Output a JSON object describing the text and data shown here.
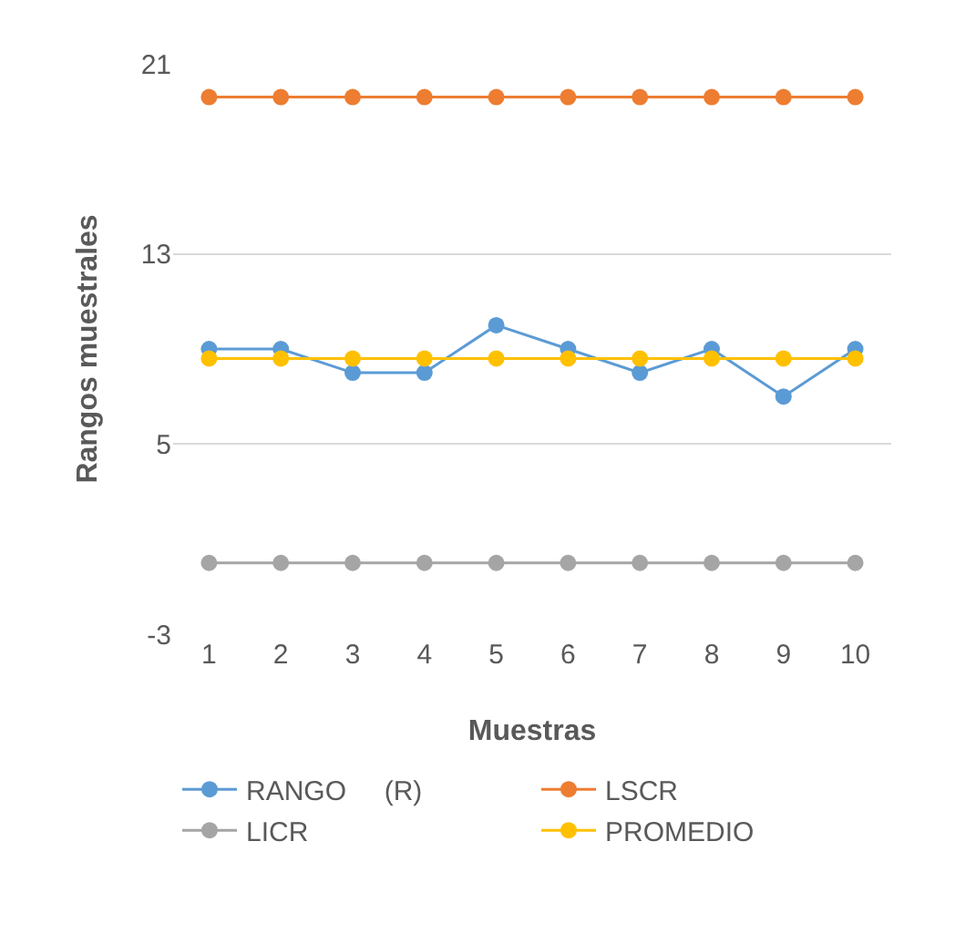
{
  "chart_data": {
    "type": "line",
    "xlabel": "Muestras",
    "ylabel": "Rangos muestrales",
    "categories": [
      "1",
      "2",
      "3",
      "4",
      "5",
      "6",
      "7",
      "8",
      "9",
      "10"
    ],
    "series": [
      {
        "name": "RANGO     (R)",
        "color": "#5b9bd5",
        "values": [
          9,
          9,
          8,
          8,
          10,
          9,
          8,
          9,
          7,
          9
        ]
      },
      {
        "name": "LSCR",
        "color": "#ed7d31",
        "values": [
          19.6,
          19.6,
          19.6,
          19.6,
          19.6,
          19.6,
          19.6,
          19.6,
          19.6,
          19.6
        ]
      },
      {
        "name": "LICR",
        "color": "#a5a5a5",
        "values": [
          0,
          0,
          0,
          0,
          0,
          0,
          0,
          0,
          0,
          0
        ]
      },
      {
        "name": "PROMEDIO",
        "color": "#ffc000",
        "values": [
          8.6,
          8.6,
          8.6,
          8.6,
          8.6,
          8.6,
          8.6,
          8.6,
          8.6,
          8.6
        ]
      }
    ],
    "ylim": [
      -3,
      21
    ],
    "yticks": [
      -3,
      5,
      13,
      21
    ],
    "grid": "y",
    "legend": "bottom",
    "marker": "circle",
    "line_style": "solid"
  }
}
